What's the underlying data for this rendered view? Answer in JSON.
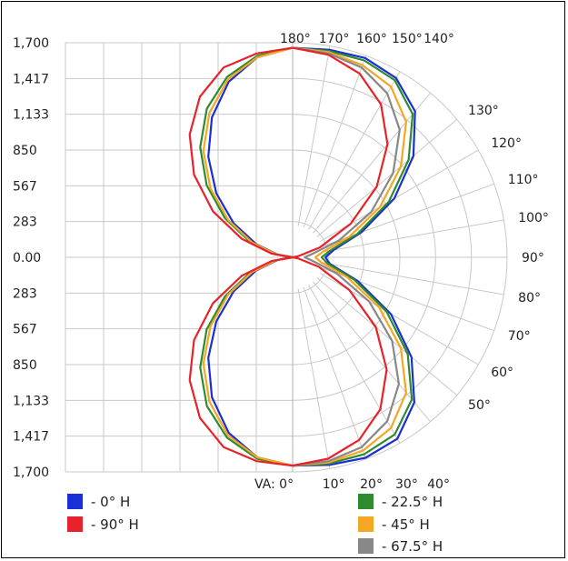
{
  "chart_data": {
    "type": "polar-line",
    "title": "",
    "center_axis_label": "VA: 0°",
    "y_tick_labels": [
      "1,700",
      "1,417",
      "1,133",
      "850",
      "567",
      "283",
      "0.00",
      "283",
      "567",
      "850",
      "1,133",
      "1,417",
      "1,700"
    ],
    "radial_max": 1700,
    "radial_ticks": [
      283,
      567,
      850,
      1133,
      1417,
      1700
    ],
    "angle_labels_top": [
      {
        "angle": 180,
        "label": "180°"
      },
      {
        "angle": 170,
        "label": "170°"
      },
      {
        "angle": 160,
        "label": "160°"
      },
      {
        "angle": 150,
        "label": "150°"
      },
      {
        "angle": 140,
        "label": "140°"
      }
    ],
    "angle_labels_right": [
      {
        "angle": 130,
        "label": "130°"
      },
      {
        "angle": 120,
        "label": "120°"
      },
      {
        "angle": 110,
        "label": "110°"
      },
      {
        "angle": 100,
        "label": "100°"
      },
      {
        "angle": 90,
        "label": "90°"
      },
      {
        "angle": 80,
        "label": "80°"
      },
      {
        "angle": 70,
        "label": "70°"
      },
      {
        "angle": 60,
        "label": "60°"
      },
      {
        "angle": 50,
        "label": "50°"
      }
    ],
    "angle_labels_bottom": [
      {
        "angle": 10,
        "label": "10°"
      },
      {
        "angle": 20,
        "label": "20°"
      },
      {
        "angle": 30,
        "label": "30°"
      },
      {
        "angle": 40,
        "label": "40°"
      }
    ],
    "angles": [
      0,
      10,
      20,
      30,
      40,
      50,
      60,
      70,
      80,
      90,
      100,
      110,
      120,
      130,
      140,
      150,
      160,
      170,
      180
    ],
    "series": [
      {
        "name": "- 0° H",
        "color": "#1a2fd6",
        "side": "right",
        "values": [
          1650,
          1670,
          1690,
          1660,
          1500,
          1230,
          900,
          550,
          300,
          260,
          330,
          580,
          930,
          1250,
          1510,
          1640,
          1680,
          1670,
          1660
        ]
      },
      {
        "name": "- 22.5° H",
        "color": "#2e8b2e",
        "side": "right",
        "values": [
          1650,
          1660,
          1660,
          1620,
          1470,
          1190,
          860,
          520,
          280,
          230,
          300,
          550,
          880,
          1200,
          1480,
          1620,
          1660,
          1660,
          1660
        ]
      },
      {
        "name": "- 45° H",
        "color": "#f5a623",
        "side": "right",
        "values": [
          1650,
          1650,
          1630,
          1560,
          1400,
          1120,
          790,
          460,
          230,
          180,
          240,
          480,
          800,
          1120,
          1400,
          1560,
          1620,
          1650,
          1660
        ]
      },
      {
        "name": "- 67.5° H",
        "color": "#888888",
        "side": "right",
        "values": [
          1650,
          1640,
          1600,
          1500,
          1310,
          1030,
          700,
          370,
          160,
          95,
          160,
          390,
          720,
          1040,
          1320,
          1500,
          1600,
          1640,
          1660
        ]
      },
      {
        "name": "- 90° H",
        "color": "#e8222a",
        "side": "right",
        "values": [
          1650,
          1620,
          1540,
          1390,
          1160,
          860,
          520,
          220,
          40,
          0,
          40,
          230,
          530,
          870,
          1170,
          1400,
          1550,
          1630,
          1660
        ]
      },
      {
        "name": "- 0° H",
        "color": "#1a2fd6",
        "side": "left",
        "legend": false,
        "values": [
          1650,
          1610,
          1480,
          1280,
          1040,
          790,
          540,
          310,
          120,
          0,
          120,
          310,
          540,
          790,
          1040,
          1280,
          1480,
          1610,
          1660
        ]
      },
      {
        "name": "- 22.5° H",
        "color": "#2e8b2e",
        "side": "left",
        "legend": false,
        "values": [
          1650,
          1620,
          1520,
          1360,
          1140,
          890,
          620,
          360,
          140,
          0,
          140,
          360,
          620,
          890,
          1140,
          1360,
          1520,
          1620,
          1660
        ]
      },
      {
        "name": "- 45° H",
        "color": "#f5a623",
        "side": "left",
        "legend": false,
        "values": [
          1650,
          1610,
          1500,
          1320,
          1100,
          850,
          590,
          340,
          130,
          0,
          130,
          340,
          590,
          850,
          1100,
          1320,
          1500,
          1610,
          1660
        ]
      },
      {
        "name": "- 90° H",
        "color": "#e8222a",
        "side": "left",
        "legend": false,
        "values": [
          1650,
          1640,
          1600,
          1470,
          1270,
          1020,
          730,
          430,
          170,
          0,
          170,
          430,
          730,
          1020,
          1270,
          1470,
          1600,
          1640,
          1660
        ]
      }
    ],
    "legend": [
      {
        "label": "- 0° H",
        "color": "#1a2fd6"
      },
      {
        "label": "- 90° H",
        "color": "#e8222a"
      },
      {
        "label": "- 22.5° H",
        "color": "#2e8b2e"
      },
      {
        "label": "- 45° H",
        "color": "#f5a623"
      },
      {
        "label": "- 67.5° H",
        "color": "#888888"
      }
    ],
    "legend_placement": "bottom",
    "grid": true
  }
}
